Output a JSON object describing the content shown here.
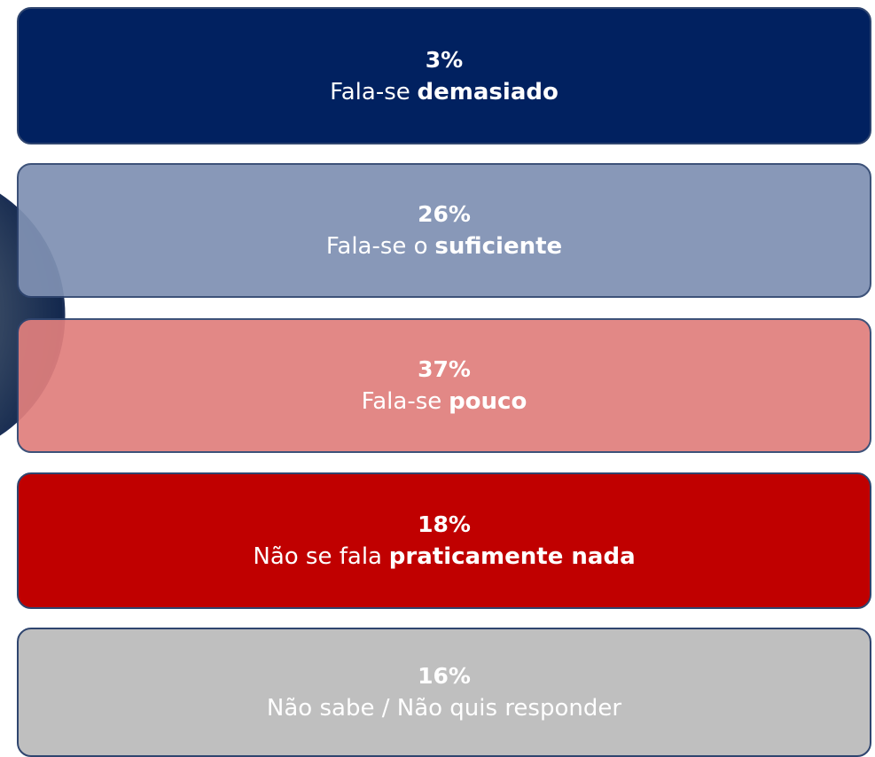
{
  "items": [
    {
      "percent": "3%",
      "label": "Fala-se",
      "emphasis": "demasiado",
      "color": "#012160"
    },
    {
      "percent": "26%",
      "label": "Fala-se o",
      "emphasis": "suficiente",
      "color": "#8091b3"
    },
    {
      "percent": "37%",
      "label": "Fala-se",
      "emphasis": "pouco",
      "color": "#e07f7d"
    },
    {
      "percent": "18%",
      "label": "Não se fala",
      "emphasis": "praticamente nada",
      "color": "#c00000"
    },
    {
      "percent": "16%",
      "label": "Não sabe / Não quis responder",
      "color": "#bfbfbf"
    }
  ]
}
